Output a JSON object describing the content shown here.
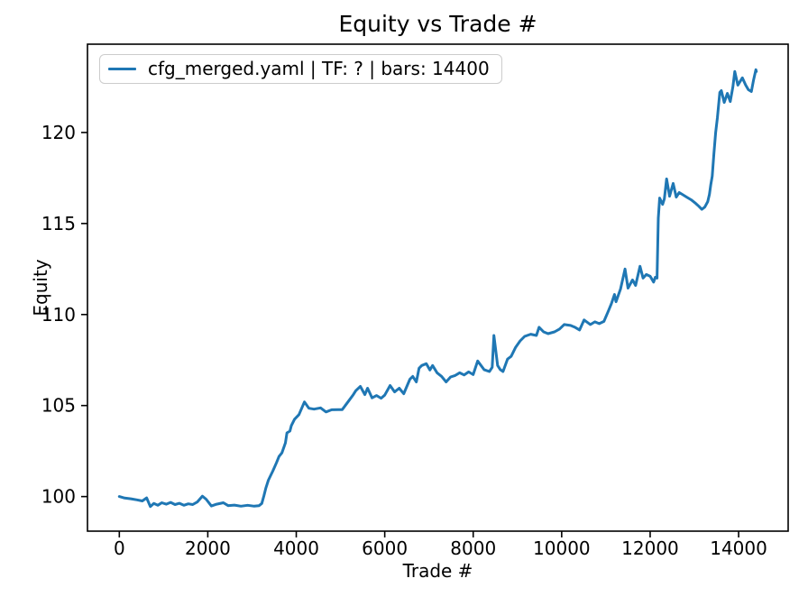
{
  "chart_data": {
    "type": "line",
    "title": "Equity vs Trade #",
    "xlabel": "Trade #",
    "ylabel": "Equity",
    "xlim": [
      -720,
      15120
    ],
    "ylim": [
      98.1,
      124.85
    ],
    "xticks": [
      0,
      2000,
      4000,
      6000,
      8000,
      10000,
      12000,
      14000
    ],
    "yticks": [
      100,
      105,
      110,
      115,
      120
    ],
    "grid": false,
    "legend_position": "upper-left",
    "line_color": "#1f77b4",
    "axis_color": "#000000",
    "series": [
      {
        "name": "cfg_merged.yaml | TF: ? | bars: 14400",
        "points": [
          [
            0,
            100.0
          ],
          [
            120,
            99.92
          ],
          [
            260,
            99.88
          ],
          [
            400,
            99.82
          ],
          [
            520,
            99.76
          ],
          [
            618,
            99.93
          ],
          [
            700,
            99.45
          ],
          [
            780,
            99.62
          ],
          [
            870,
            99.52
          ],
          [
            960,
            99.66
          ],
          [
            1060,
            99.58
          ],
          [
            1160,
            99.68
          ],
          [
            1260,
            99.56
          ],
          [
            1360,
            99.63
          ],
          [
            1460,
            99.52
          ],
          [
            1560,
            99.6
          ],
          [
            1660,
            99.56
          ],
          [
            1760,
            99.7
          ],
          [
            1878,
            100.02
          ],
          [
            1960,
            99.86
          ],
          [
            2082,
            99.48
          ],
          [
            2200,
            99.58
          ],
          [
            2353,
            99.66
          ],
          [
            2460,
            99.5
          ],
          [
            2600,
            99.53
          ],
          [
            2750,
            99.47
          ],
          [
            2900,
            99.52
          ],
          [
            3050,
            99.47
          ],
          [
            3160,
            99.5
          ],
          [
            3220,
            99.62
          ],
          [
            3270,
            100.05
          ],
          [
            3310,
            100.45
          ],
          [
            3370,
            100.9
          ],
          [
            3470,
            101.4
          ],
          [
            3550,
            101.85
          ],
          [
            3610,
            102.2
          ],
          [
            3675,
            102.4
          ],
          [
            3755,
            102.95
          ],
          [
            3790,
            103.5
          ],
          [
            3857,
            103.6
          ],
          [
            3890,
            103.9
          ],
          [
            3960,
            104.25
          ],
          [
            4060,
            104.5
          ],
          [
            4184,
            105.2
          ],
          [
            4285,
            104.85
          ],
          [
            4400,
            104.8
          ],
          [
            4550,
            104.87
          ],
          [
            4673,
            104.65
          ],
          [
            4800,
            104.77
          ],
          [
            4950,
            104.78
          ],
          [
            5040,
            104.78
          ],
          [
            5184,
            105.25
          ],
          [
            5290,
            105.6
          ],
          [
            5347,
            105.82
          ],
          [
            5449,
            106.05
          ],
          [
            5551,
            105.6
          ],
          [
            5612,
            105.95
          ],
          [
            5714,
            105.42
          ],
          [
            5816,
            105.55
          ],
          [
            5918,
            105.4
          ],
          [
            6000,
            105.57
          ],
          [
            6122,
            106.1
          ],
          [
            6224,
            105.75
          ],
          [
            6327,
            105.95
          ],
          [
            6429,
            105.65
          ],
          [
            6571,
            106.45
          ],
          [
            6633,
            106.6
          ],
          [
            6714,
            106.3
          ],
          [
            6776,
            107.05
          ],
          [
            6837,
            107.2
          ],
          [
            6939,
            107.3
          ],
          [
            7020,
            106.95
          ],
          [
            7082,
            107.2
          ],
          [
            7184,
            106.8
          ],
          [
            7286,
            106.6
          ],
          [
            7388,
            106.3
          ],
          [
            7490,
            106.57
          ],
          [
            7592,
            106.65
          ],
          [
            7694,
            106.8
          ],
          [
            7796,
            106.68
          ],
          [
            7898,
            106.85
          ],
          [
            8000,
            106.7
          ],
          [
            8102,
            107.45
          ],
          [
            8245,
            106.97
          ],
          [
            8367,
            106.87
          ],
          [
            8430,
            107.1
          ],
          [
            8469,
            108.85
          ],
          [
            8551,
            107.2
          ],
          [
            8612,
            106.97
          ],
          [
            8673,
            106.87
          ],
          [
            8776,
            107.55
          ],
          [
            8857,
            107.7
          ],
          [
            8959,
            108.2
          ],
          [
            9061,
            108.55
          ],
          [
            9163,
            108.8
          ],
          [
            9300,
            108.92
          ],
          [
            9429,
            108.85
          ],
          [
            9490,
            109.3
          ],
          [
            9592,
            109.05
          ],
          [
            9694,
            108.95
          ],
          [
            9837,
            109.05
          ],
          [
            9950,
            109.2
          ],
          [
            10057,
            109.45
          ],
          [
            10200,
            109.4
          ],
          [
            10300,
            109.3
          ],
          [
            10404,
            109.15
          ],
          [
            10506,
            109.7
          ],
          [
            10650,
            109.45
          ],
          [
            10751,
            109.6
          ],
          [
            10850,
            109.5
          ],
          [
            10955,
            109.62
          ],
          [
            11057,
            110.2
          ],
          [
            11125,
            110.6
          ],
          [
            11194,
            111.1
          ],
          [
            11228,
            110.7
          ],
          [
            11330,
            111.4
          ],
          [
            11432,
            112.5
          ],
          [
            11500,
            111.45
          ],
          [
            11602,
            111.9
          ],
          [
            11671,
            111.6
          ],
          [
            11771,
            112.65
          ],
          [
            11839,
            112.0
          ],
          [
            11914,
            112.2
          ],
          [
            12000,
            112.1
          ],
          [
            12078,
            111.78
          ],
          [
            12118,
            112.05
          ],
          [
            12155,
            112.0
          ],
          [
            12185,
            115.3
          ],
          [
            12214,
            116.4
          ],
          [
            12282,
            116.05
          ],
          [
            12320,
            116.35
          ],
          [
            12372,
            117.45
          ],
          [
            12440,
            116.5
          ],
          [
            12521,
            117.2
          ],
          [
            12590,
            116.45
          ],
          [
            12657,
            116.7
          ],
          [
            12725,
            116.6
          ],
          [
            12827,
            116.45
          ],
          [
            12929,
            116.3
          ],
          [
            13030,
            116.1
          ],
          [
            13100,
            115.95
          ],
          [
            13167,
            115.78
          ],
          [
            13234,
            115.9
          ],
          [
            13302,
            116.2
          ],
          [
            13340,
            116.6
          ],
          [
            13369,
            117.1
          ],
          [
            13403,
            117.6
          ],
          [
            13440,
            118.8
          ],
          [
            13480,
            120.0
          ],
          [
            13520,
            120.8
          ],
          [
            13575,
            122.2
          ],
          [
            13610,
            122.3
          ],
          [
            13675,
            121.65
          ],
          [
            13745,
            122.15
          ],
          [
            13812,
            121.7
          ],
          [
            13870,
            122.5
          ],
          [
            13914,
            123.35
          ],
          [
            13982,
            122.6
          ],
          [
            14084,
            123.0
          ],
          [
            14160,
            122.6
          ],
          [
            14220,
            122.35
          ],
          [
            14288,
            122.25
          ],
          [
            14340,
            122.9
          ],
          [
            14390,
            123.45
          ],
          [
            14400,
            123.35
          ]
        ]
      }
    ]
  }
}
